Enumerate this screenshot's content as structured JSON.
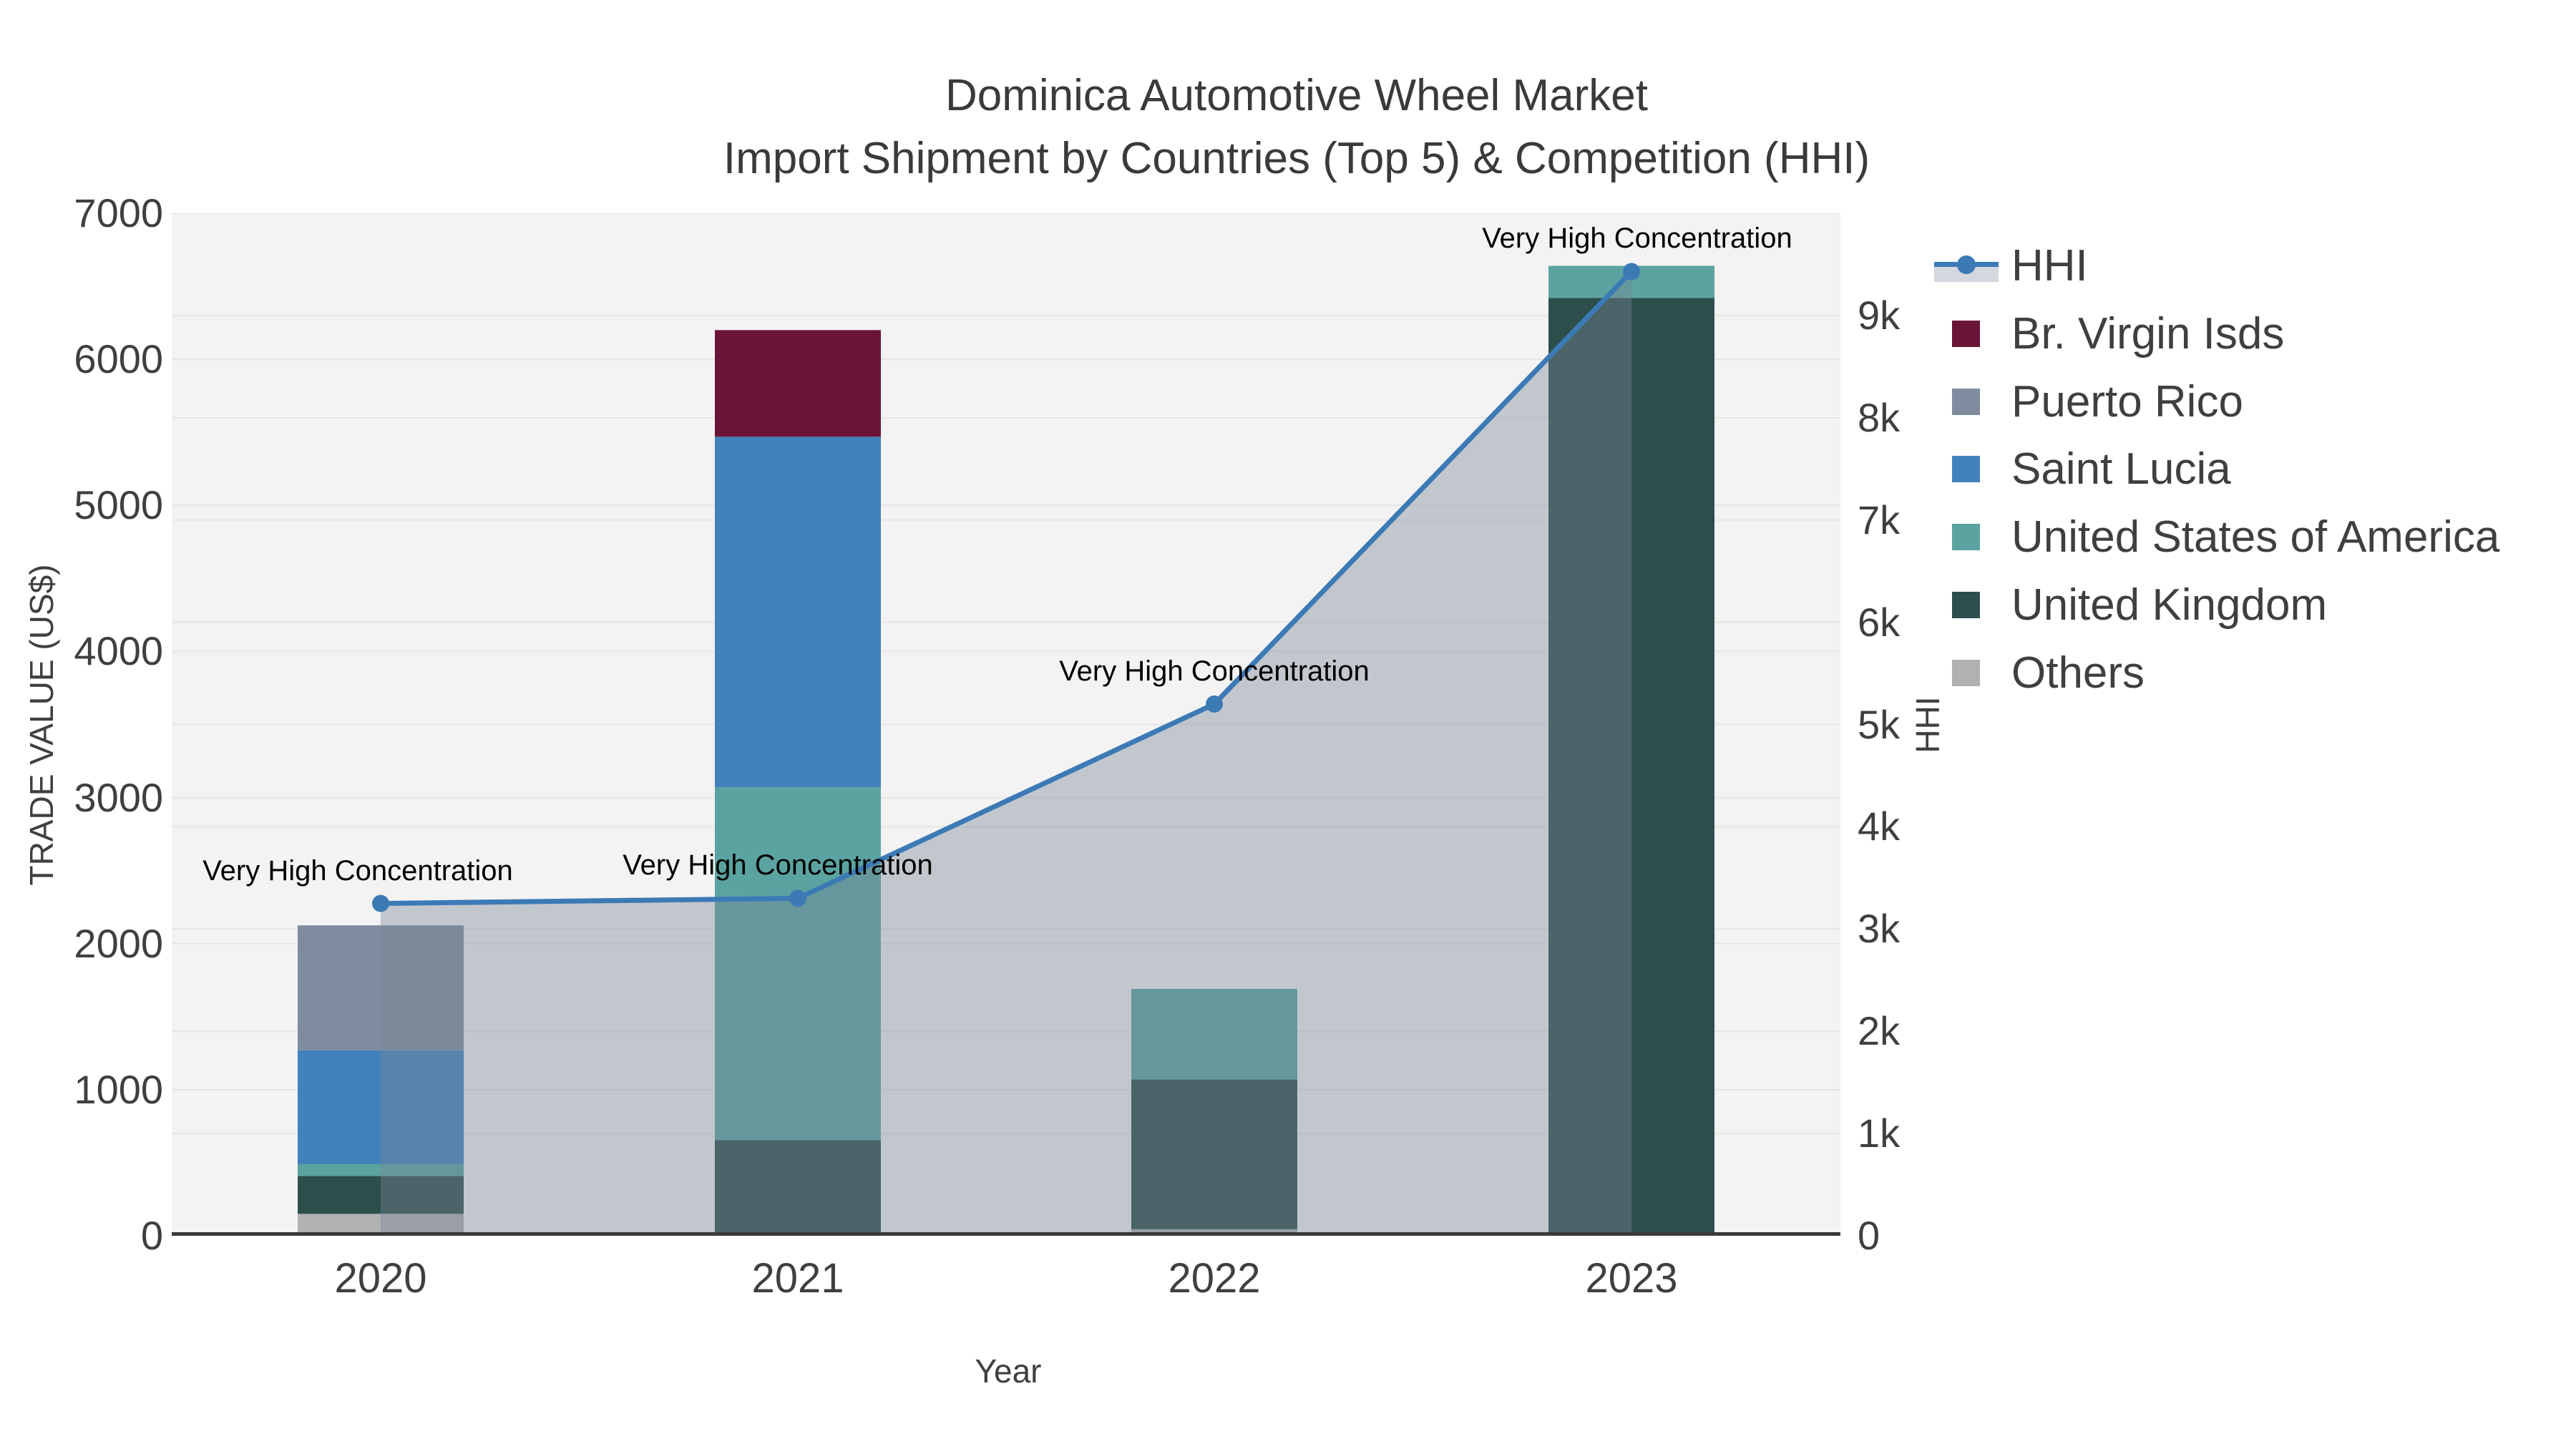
{
  "title": {
    "line1": "Dominica Automotive Wheel Market",
    "line2": "Import Shipment by Countries (Top 5) & Competition (HHI)"
  },
  "axes": {
    "x": {
      "label": "Year",
      "categories": [
        "2020",
        "2021",
        "2022",
        "2023"
      ]
    },
    "left": {
      "label": "TRADE VALUE (US$)",
      "max": 7000,
      "ticks": [
        {
          "value": 0,
          "label": "0"
        },
        {
          "value": 1000,
          "label": "1000"
        },
        {
          "value": 2000,
          "label": "2000"
        },
        {
          "value": 3000,
          "label": "3000"
        },
        {
          "value": 4000,
          "label": "4000"
        },
        {
          "value": 5000,
          "label": "5000"
        },
        {
          "value": 6000,
          "label": "6000"
        },
        {
          "value": 7000,
          "label": "7000"
        }
      ]
    },
    "right": {
      "label": "HHI",
      "max": 10000,
      "ticks": [
        {
          "value": 0,
          "label": "0"
        },
        {
          "value": 1000,
          "label": "1k"
        },
        {
          "value": 2000,
          "label": "2k"
        },
        {
          "value": 3000,
          "label": "3k"
        },
        {
          "value": 4000,
          "label": "4k"
        },
        {
          "value": 5000,
          "label": "5k"
        },
        {
          "value": 6000,
          "label": "6k"
        },
        {
          "value": 7000,
          "label": "7k"
        },
        {
          "value": 8000,
          "label": "8k"
        },
        {
          "value": 9000,
          "label": "9k"
        }
      ]
    }
  },
  "legend": {
    "items": [
      {
        "key": "hhi",
        "label": "HHI",
        "type": "line",
        "color": "#3c7ab5",
        "band": "#d3d7de"
      },
      {
        "key": "br-virgin-isds",
        "label": "Br. Virgin Isds",
        "type": "square",
        "color": "#6a1537"
      },
      {
        "key": "puerto-rico",
        "label": "Puerto Rico",
        "type": "square",
        "color": "#7f8c9f"
      },
      {
        "key": "saint-lucia",
        "label": "Saint Lucia",
        "type": "square",
        "color": "#4282bc"
      },
      {
        "key": "united-states-of-america",
        "label": "United States of America",
        "type": "square",
        "color": "#5ba3a1"
      },
      {
        "key": "united-kingdom",
        "label": "United Kingdom",
        "type": "square",
        "color": "#2c4f4c"
      },
      {
        "key": "others",
        "label": "Others",
        "type": "square",
        "color": "#b1b1b1"
      }
    ]
  },
  "colors": {
    "page_background": "#ffffff",
    "plot_background": "#f4f3f3",
    "gridline": "#e7e5e4",
    "axis_spine": "#3a3a3a",
    "tick_text": "#3f3f3f",
    "title_text": "#3a3a3a",
    "annotation_text": "#000000",
    "hhi_line": "#3c7ab5",
    "hhi_area_fill": "rgba(120,132,150,0.4)"
  },
  "chart_data": {
    "type": "bar+line",
    "title": "Dominica Automotive Wheel Market — Import Shipment by Countries (Top 5) & Competition (HHI)",
    "xlabel": "Year",
    "ylabel_left": "TRADE VALUE (US$)",
    "ylabel_right": "HHI",
    "ylim_left": [
      0,
      7000
    ],
    "ylim_right": [
      0,
      10000
    ],
    "grid": true,
    "legend_position": "right",
    "categories": [
      "2020",
      "2021",
      "2022",
      "2023"
    ],
    "bar_stack_order_bottom_to_top": [
      "Others",
      "United Kingdom",
      "United States of America",
      "Saint Lucia",
      "Puerto Rico",
      "Br. Virgin Isds"
    ],
    "series": [
      {
        "name": "Others",
        "key": "others",
        "color": "#b1b1b1",
        "values": [
          150,
          0,
          45,
          0
        ]
      },
      {
        "name": "United Kingdom",
        "key": "united-kingdom",
        "color": "#2c4f4c",
        "values": [
          260,
          655,
          1025,
          6420
        ]
      },
      {
        "name": "United States of America",
        "key": "united-states-of-america",
        "color": "#5ba3a1",
        "values": [
          80,
          2415,
          620,
          220
        ]
      },
      {
        "name": "Saint Lucia",
        "key": "saint-lucia",
        "color": "#4282bc",
        "values": [
          780,
          2400,
          0,
          0
        ]
      },
      {
        "name": "Puerto Rico",
        "key": "puerto-rico",
        "color": "#7f8c9f",
        "values": [
          855,
          0,
          0,
          0
        ]
      },
      {
        "name": "Br. Virgin Isds",
        "key": "br-virgin-isds",
        "color": "#6a1537",
        "values": [
          0,
          730,
          0,
          0
        ]
      }
    ],
    "bar_totals": [
      2125,
      6200,
      1690,
      6640
    ],
    "line_series": {
      "name": "HHI",
      "axis": "right",
      "color": "#3c7ab5",
      "area_fill": "rgba(120,132,150,0.4)",
      "values": [
        3250,
        3300,
        5200,
        9430
      ]
    },
    "annotations": [
      {
        "category": "2020",
        "text": "Very High Concentration"
      },
      {
        "category": "2021",
        "text": "Very High Concentration"
      },
      {
        "category": "2022",
        "text": "Very High Concentration"
      },
      {
        "category": "2023",
        "text": "Very High Concentration"
      }
    ]
  }
}
